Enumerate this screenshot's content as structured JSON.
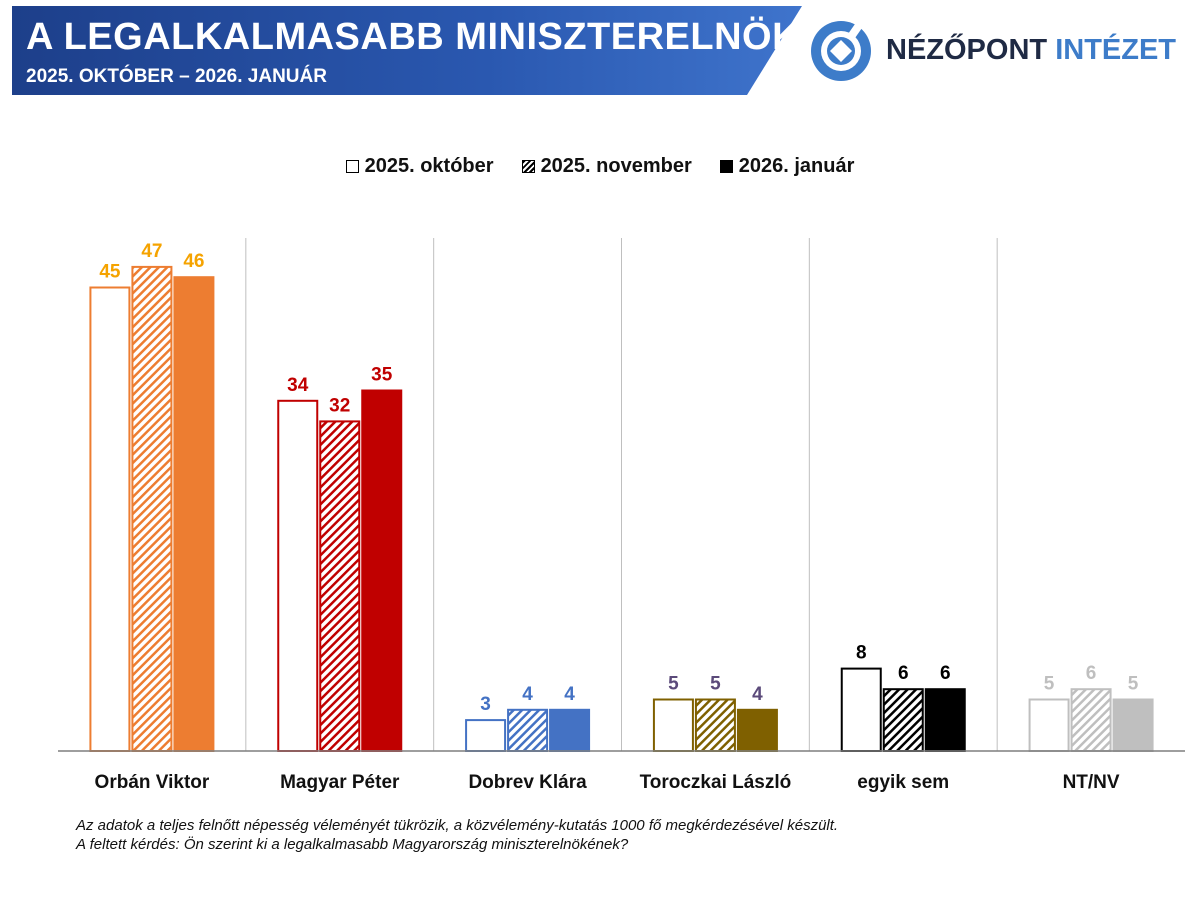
{
  "header": {
    "title": "A LEGALKALMASABB MINISZTERELNÖK",
    "subtitle": "2025. OKTÓBER – 2026. JANUÁR"
  },
  "logo": {
    "name_part1": "NÉZŐPONT",
    "name_part2": "INTÉZET",
    "icon": "nezopont-logo-icon"
  },
  "legend": {
    "items": [
      {
        "label": "2025. október",
        "style": "outline"
      },
      {
        "label": "2025. november",
        "style": "hatched"
      },
      {
        "label": "2026. január",
        "style": "solid"
      }
    ]
  },
  "chart_data": {
    "type": "bar",
    "title": "",
    "xlabel": "",
    "ylabel": "",
    "ylim": [
      0,
      50
    ],
    "grid": false,
    "legend_position": "top-center",
    "categories": [
      "Orbán Viktor",
      "Magyar Péter",
      "Dobrev Klára",
      "Toroczkai László",
      "egyik sem",
      "NT/NV"
    ],
    "category_colors": [
      "#ed7d31",
      "#c00000",
      "#4472c4",
      "#7f6000",
      "#000000",
      "#bfbfbf"
    ],
    "label_colors": [
      "#f5a300",
      "#c00000",
      "#4472c4",
      "#5b4a7a",
      "#000000",
      "#bfbfbf"
    ],
    "series": [
      {
        "name": "2025. október",
        "values": [
          45,
          34,
          3,
          5,
          8,
          5
        ]
      },
      {
        "name": "2025. november",
        "values": [
          47,
          32,
          4,
          5,
          6,
          6
        ]
      },
      {
        "name": "2026. január",
        "values": [
          46,
          35,
          4,
          4,
          6,
          5
        ]
      }
    ]
  },
  "notes": {
    "line1": "Az adatok a teljes felnőtt népesség véleményét tükrözik, a közvélemény-kutatás 1000 fő megkérdezésével készült.",
    "line2": "A feltett kérdés: Ön szerint ki a legalkalmasabb Magyarország miniszterelnökének?"
  }
}
